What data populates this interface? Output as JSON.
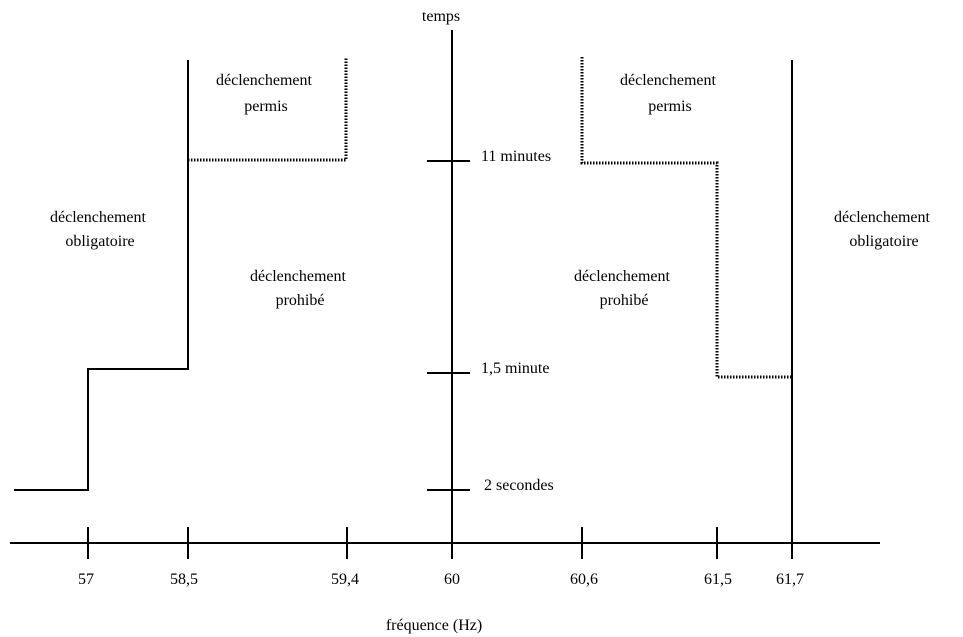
{
  "axes": {
    "vertical_label": "temps",
    "horizontal_label": "fréquence (Hz)"
  },
  "frequency_ticks": [
    "57",
    "58,5",
    "59,4",
    "60",
    "60,6",
    "61,5",
    "61,7"
  ],
  "time_ticks": [
    "11 minutes",
    "1,5 minute",
    "2 secondes"
  ],
  "regions": {
    "left_obligatory": [
      "déclenchement",
      "obligatoire"
    ],
    "left_permitted": [
      "déclenchement",
      "permis"
    ],
    "left_prohibited": [
      "déclenchement",
      "prohibé"
    ],
    "right_permitted": [
      "déclenchement",
      "permis"
    ],
    "right_prohibited": [
      "déclenchement",
      "prohibé"
    ],
    "right_obligatory": [
      "déclenchement",
      "obligatoire"
    ]
  },
  "colors": {
    "line": "#000000",
    "background": "#ffffff"
  }
}
